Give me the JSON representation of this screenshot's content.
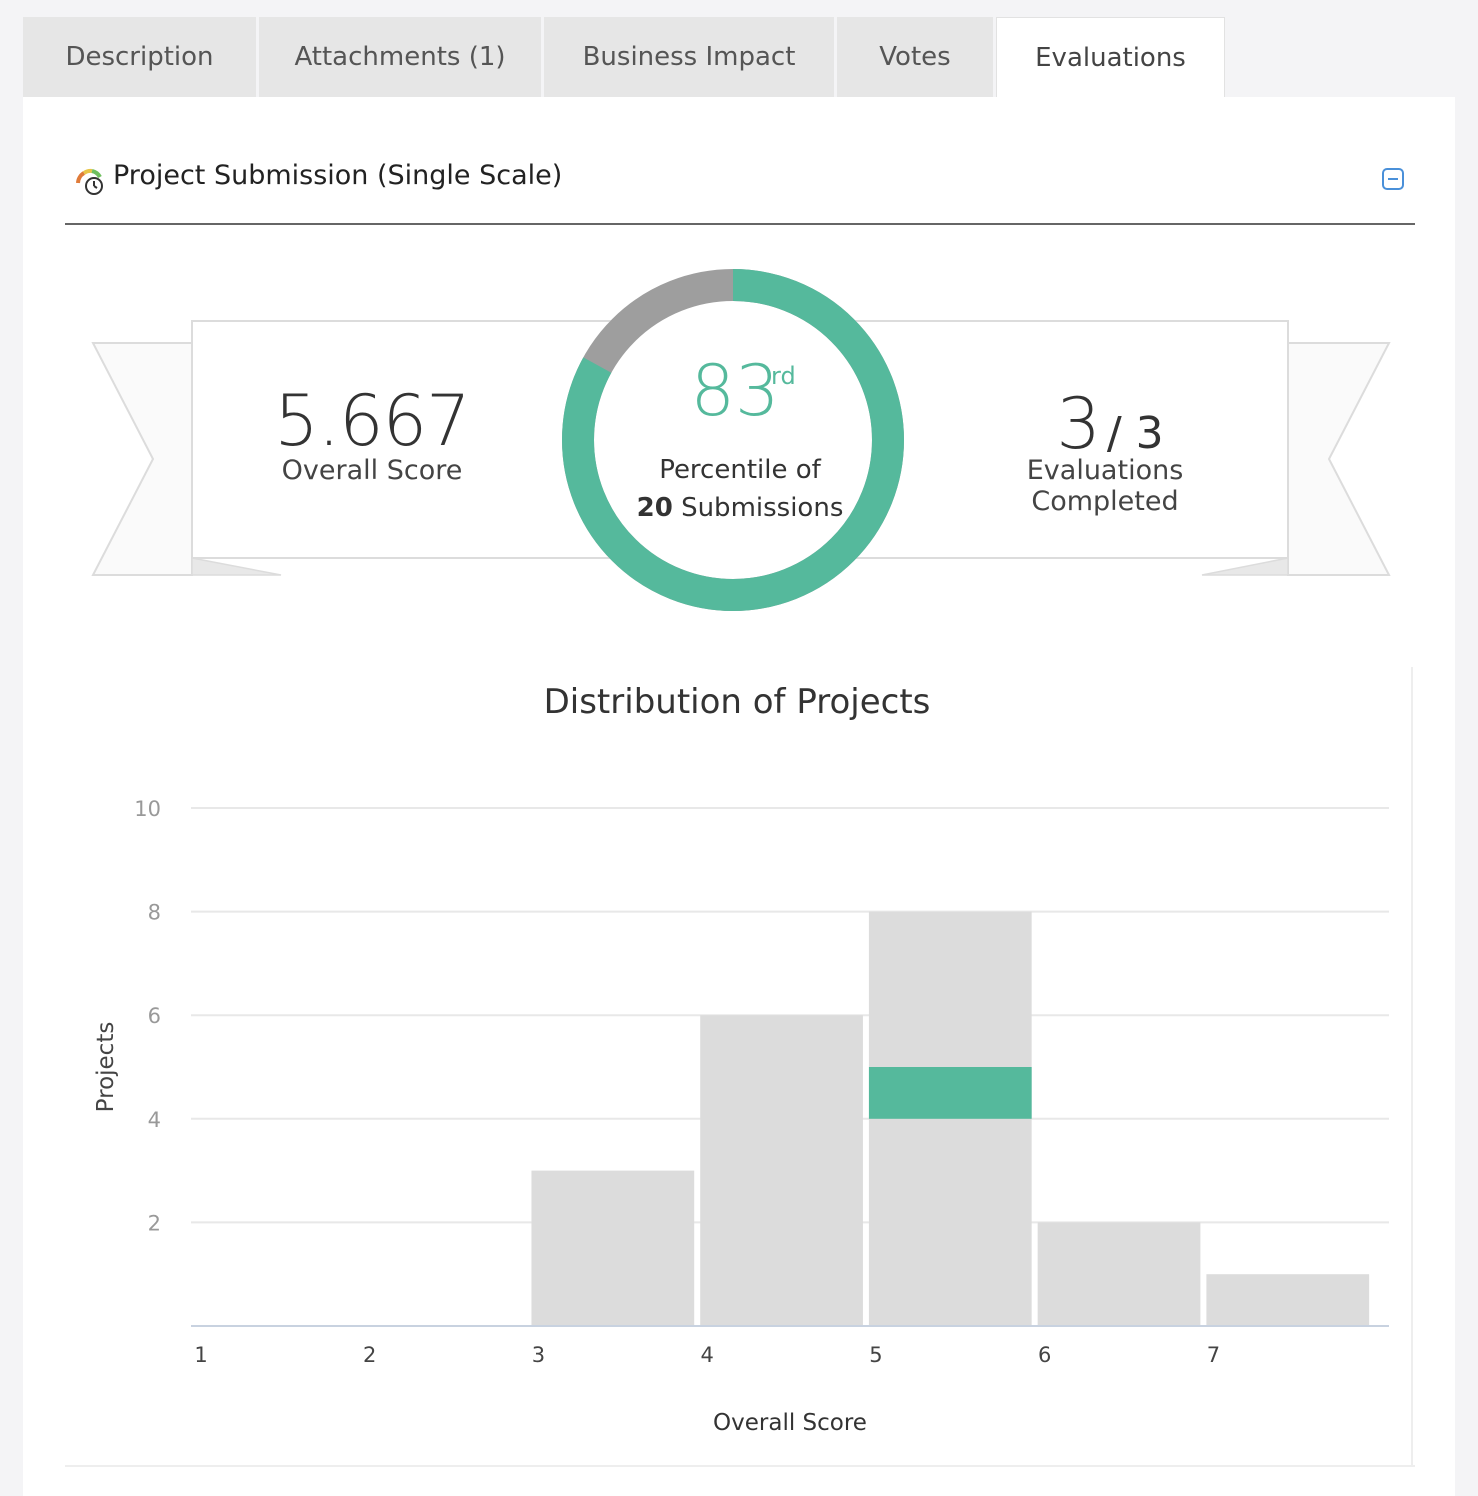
{
  "tabs": [
    {
      "label": "Description",
      "active": false
    },
    {
      "label": "Attachments (1)",
      "active": false
    },
    {
      "label": "Business Impact",
      "active": false
    },
    {
      "label": "Votes",
      "active": false
    },
    {
      "label": "Evaluations",
      "active": true
    }
  ],
  "section": {
    "title": "Project Submission (Single Scale)",
    "icon": "gauge-icon",
    "collapse_icon": "collapse-icon"
  },
  "summary": {
    "overall_score": "5.667",
    "overall_label": "Overall Score",
    "percentile_value": "83",
    "percentile_suffix": "rd",
    "percentile_label": "Percentile of",
    "submissions_count": "20",
    "submissions_label": "Submissions",
    "percentile_fraction": 0.83,
    "evaluations_done": "3",
    "evaluations_total": "/ 3",
    "evaluations_label": "Evaluations Completed"
  },
  "colors": {
    "accent": "#55b99c",
    "ring_rest": "#9e9e9e",
    "bar": "#dcdcdc",
    "grid": "#e8e8e8"
  },
  "chart_data": {
    "type": "bar",
    "title": "Distribution of Projects",
    "xlabel": "Overall Score",
    "ylabel": "Projects",
    "x_ticks": [
      "1",
      "2",
      "3",
      "4",
      "5",
      "6",
      "7"
    ],
    "y_ticks": [
      "2",
      "4",
      "6",
      "8",
      "10"
    ],
    "xlim": [
      1,
      8.1
    ],
    "ylim": [
      0,
      10
    ],
    "bins": [
      {
        "start": 3,
        "end": 4,
        "value": 3
      },
      {
        "start": 4,
        "end": 5,
        "value": 6
      },
      {
        "start": 5,
        "end": 6,
        "value": 8
      },
      {
        "start": 6,
        "end": 7,
        "value": 2
      },
      {
        "start": 7,
        "end": 8,
        "value": 1
      }
    ],
    "highlight": {
      "start": 5,
      "end": 6,
      "from": 4,
      "to": 5
    }
  }
}
